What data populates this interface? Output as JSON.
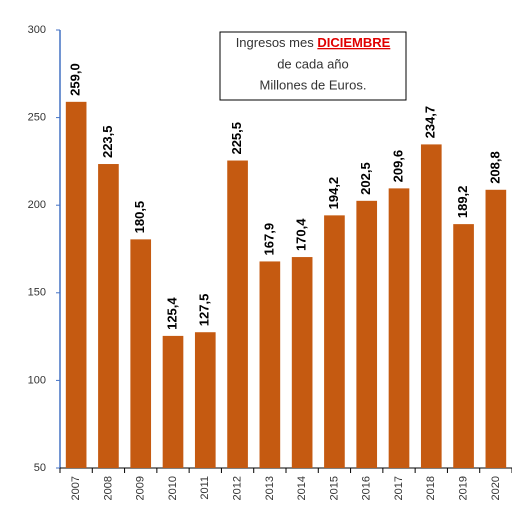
{
  "chart_data": {
    "type": "bar",
    "title": "Ingresos mes",
    "title_highlight": "DICIEMBRE",
    "subtitle": [
      "de cada año",
      "Millones de Euros."
    ],
    "categories": [
      "2007",
      "2008",
      "2009",
      "2010",
      "2011",
      "2012",
      "2013",
      "2014",
      "2015",
      "2016",
      "2017",
      "2018",
      "2019",
      "2020"
    ],
    "values": [
      259.0,
      223.5,
      180.5,
      125.4,
      127.5,
      225.5,
      167.9,
      170.4,
      194.2,
      202.5,
      209.6,
      234.7,
      189.2,
      208.8
    ],
    "value_labels": [
      "259,0",
      "223,5",
      "180,5",
      "125,4",
      "127,5",
      "225,5",
      "167,9",
      "170,4",
      "194,2",
      "202,5",
      "209,6",
      "234,7",
      "189,2",
      "208,8"
    ],
    "color": "#c55a11",
    "ylim": [
      50,
      300
    ],
    "yticks": [
      50,
      100,
      150,
      200,
      250,
      300
    ],
    "grid": false
  }
}
